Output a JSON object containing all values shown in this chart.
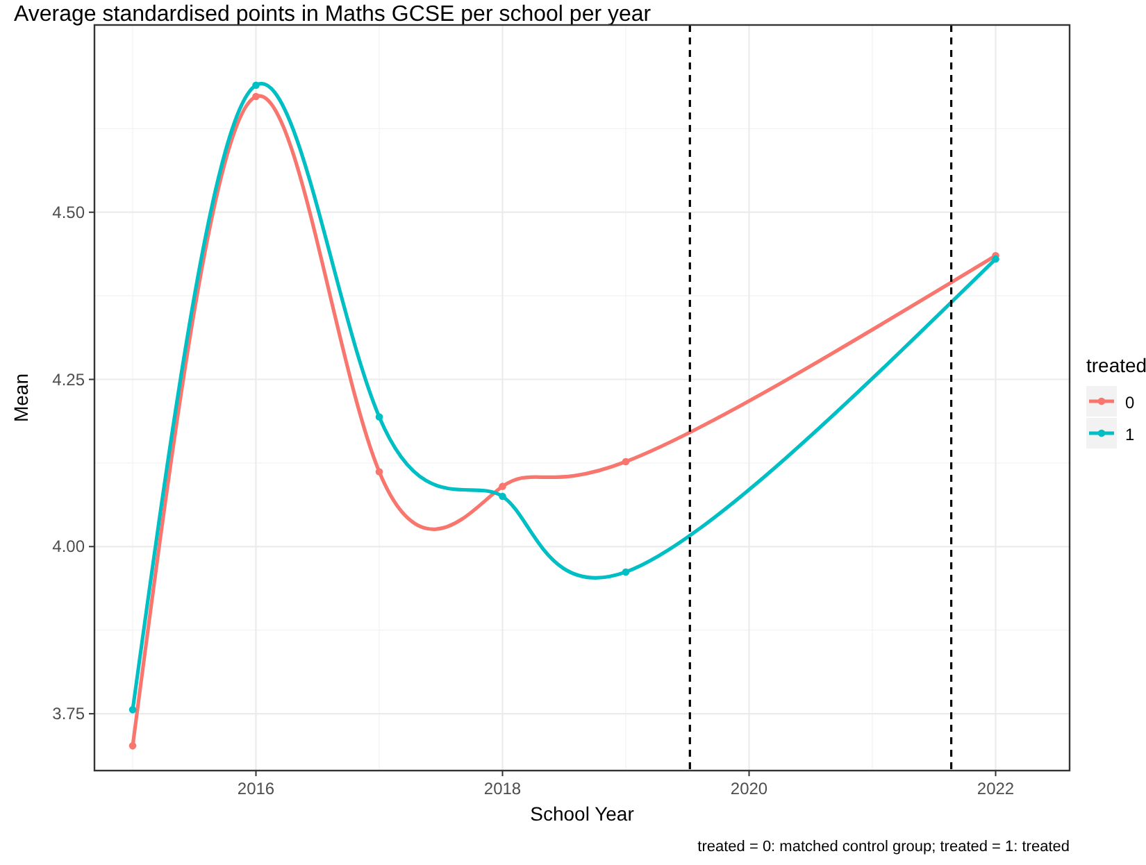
{
  "chart_data": {
    "type": "line",
    "title": "Average standardised points in Maths GCSE per school per year",
    "xlabel": "School Year",
    "ylabel": "Mean",
    "legend_title": "treated",
    "x": [
      2015,
      2016,
      2017,
      2018,
      2019,
      2022
    ],
    "series": [
      {
        "name": "0",
        "color": "#f8766d",
        "values": [
          3.702,
          4.673,
          4.112,
          4.09,
          4.127,
          4.435
        ]
      },
      {
        "name": "1",
        "color": "#00bfc4",
        "values": [
          3.756,
          4.69,
          4.194,
          4.075,
          3.962,
          4.43
        ]
      }
    ],
    "xlim": [
      2014.69,
      2022.6
    ],
    "xticks": [
      2016,
      2018,
      2020,
      2022
    ],
    "ylim": [
      3.665,
      4.78
    ],
    "yticks": [
      {
        "value": 3.75,
        "label": "3.75"
      },
      {
        "value": 4,
        "label": "4.00"
      },
      {
        "value": 4.25,
        "label": "4.25"
      },
      {
        "value": 4.5,
        "label": "4.50"
      }
    ],
    "ref_lines": [
      {
        "axis": "x",
        "value": 2019.52,
        "color": "#000000",
        "line_style": "dashed"
      },
      {
        "axis": "x",
        "value": 2021.64,
        "color": "#000000",
        "line_style": "dashed"
      }
    ],
    "annotations": [
      "treated = 0: matched control group; treated = 1: treated"
    ],
    "grid": true,
    "legend": "right",
    "marker": "circle",
    "line_style": "solid"
  }
}
